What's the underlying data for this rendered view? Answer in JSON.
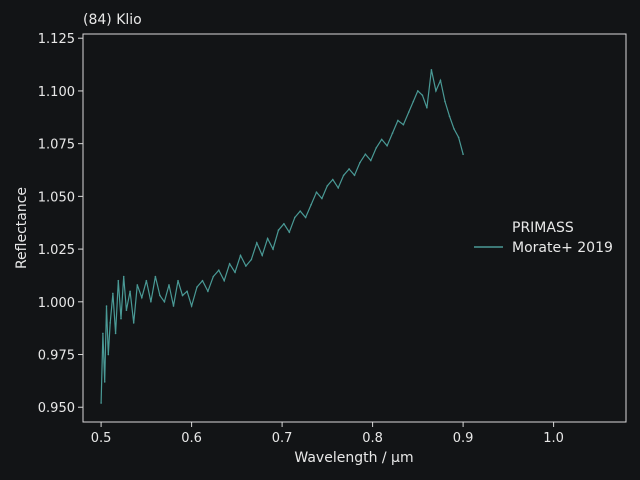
{
  "chart_data": {
    "type": "line",
    "title": "(84) Klio",
    "xlabel": "Wavelength / µm",
    "ylabel": "Reflectance",
    "xlim": [
      0.48,
      1.08
    ],
    "ylim": [
      0.943,
      1.127
    ],
    "xticks": [
      0.5,
      0.6,
      0.7,
      0.8,
      0.9,
      1.0
    ],
    "xtick_labels": [
      "0.5",
      "0.6",
      "0.7",
      "0.8",
      "0.9",
      "1.0"
    ],
    "yticks": [
      0.95,
      0.975,
      1.0,
      1.025,
      1.05,
      1.075,
      1.1,
      1.125
    ],
    "ytick_labels": [
      "0.950",
      "0.975",
      "1.000",
      "1.025",
      "1.050",
      "1.075",
      "1.100",
      "1.125"
    ],
    "grid": false,
    "legend": {
      "title": "PRIMASS",
      "placement": "center-right",
      "entries": [
        "Morate+ 2019"
      ]
    },
    "series": [
      {
        "name": "Morate+ 2019",
        "color": "#4a9a96",
        "x": [
          0.5,
          0.502,
          0.504,
          0.506,
          0.508,
          0.51,
          0.513,
          0.516,
          0.519,
          0.522,
          0.525,
          0.528,
          0.532,
          0.536,
          0.54,
          0.545,
          0.55,
          0.555,
          0.56,
          0.565,
          0.57,
          0.575,
          0.58,
          0.585,
          0.59,
          0.595,
          0.6,
          0.606,
          0.612,
          0.618,
          0.624,
          0.63,
          0.636,
          0.642,
          0.648,
          0.654,
          0.66,
          0.666,
          0.672,
          0.678,
          0.684,
          0.69,
          0.696,
          0.702,
          0.708,
          0.714,
          0.72,
          0.726,
          0.732,
          0.738,
          0.744,
          0.75,
          0.756,
          0.762,
          0.768,
          0.774,
          0.78,
          0.786,
          0.792,
          0.798,
          0.804,
          0.81,
          0.816,
          0.822,
          0.828,
          0.834,
          0.84,
          0.845,
          0.85,
          0.855,
          0.86,
          0.865,
          0.87,
          0.875,
          0.88,
          0.885,
          0.89,
          0.895,
          0.9
        ],
        "y": [
          0.952,
          0.985,
          0.962,
          0.998,
          0.975,
          0.99,
          1.004,
          0.985,
          1.01,
          0.992,
          1.012,
          0.996,
          1.005,
          0.99,
          1.008,
          1.002,
          1.01,
          1.0,
          1.012,
          1.003,
          1.0,
          1.008,
          0.998,
          1.01,
          1.003,
          1.005,
          0.998,
          1.007,
          1.01,
          1.005,
          1.012,
          1.015,
          1.01,
          1.018,
          1.014,
          1.022,
          1.017,
          1.02,
          1.028,
          1.022,
          1.03,
          1.025,
          1.034,
          1.037,
          1.033,
          1.04,
          1.043,
          1.04,
          1.046,
          1.052,
          1.049,
          1.055,
          1.058,
          1.054,
          1.06,
          1.063,
          1.06,
          1.066,
          1.07,
          1.067,
          1.073,
          1.077,
          1.074,
          1.08,
          1.086,
          1.084,
          1.09,
          1.095,
          1.1,
          1.098,
          1.092,
          1.11,
          1.1,
          1.105,
          1.095,
          1.088,
          1.082,
          1.078,
          1.07
        ]
      }
    ]
  }
}
